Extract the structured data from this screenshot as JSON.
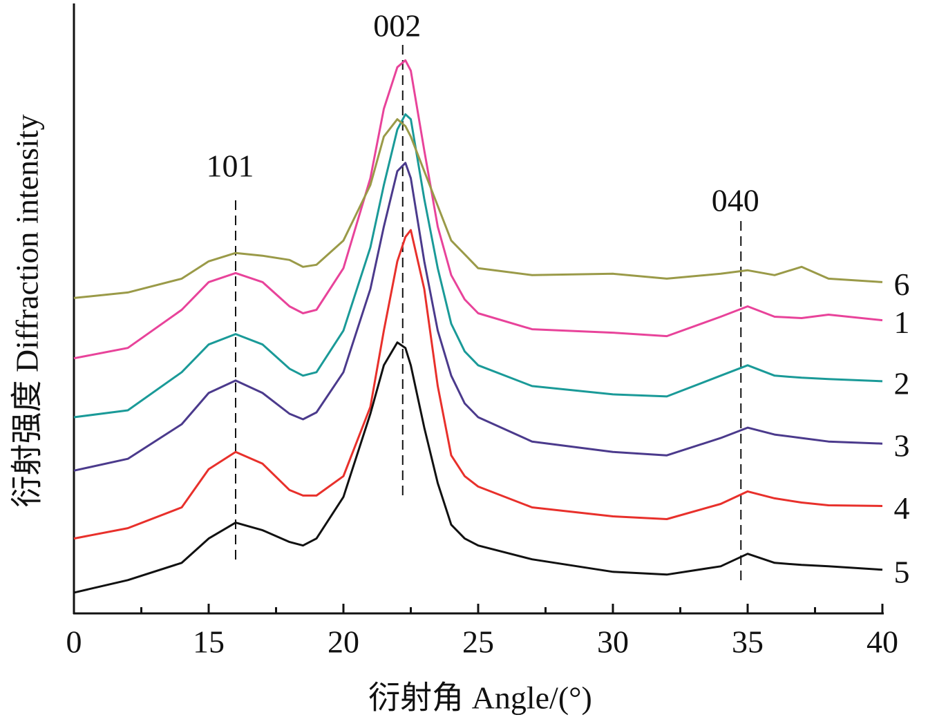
{
  "chart_data": {
    "type": "line",
    "xlabel": "衍射角  Angle/(°)",
    "ylabel": "衍射强度  Diffraction intensity",
    "x": [
      10,
      12,
      14,
      15,
      16,
      17,
      18,
      18.5,
      19,
      20,
      21,
      21.5,
      22,
      22.3,
      22.5,
      23,
      23.5,
      24,
      24.5,
      25,
      27,
      30,
      32,
      34,
      35,
      36,
      37,
      38,
      40
    ],
    "series": [
      {
        "name": "1",
        "color": "#e8439a",
        "values": [
          368,
          383,
          438,
          478,
          491,
          478,
          443,
          433,
          438,
          498,
          628,
          728,
          788,
          798,
          783,
          668,
          558,
          488,
          453,
          433,
          410,
          405,
          400,
          428,
          443,
          428,
          426,
          431,
          423
        ]
      },
      {
        "name": "2",
        "color": "#1a9a98",
        "values": [
          283,
          293,
          348,
          388,
          403,
          388,
          353,
          343,
          348,
          408,
          528,
          618,
          698,
          720,
          713,
          598,
          498,
          418,
          378,
          358,
          328,
          316,
          313,
          343,
          358,
          343,
          340,
          338,
          335
        ]
      },
      {
        "name": "3",
        "color": "#4b3a8c",
        "values": [
          206,
          223,
          273,
          318,
          336,
          318,
          288,
          280,
          290,
          348,
          468,
          558,
          638,
          650,
          628,
          508,
          408,
          343,
          303,
          283,
          248,
          233,
          228,
          253,
          268,
          258,
          253,
          248,
          245
        ]
      },
      {
        "name": "4",
        "color": "#e8302b",
        "values": [
          108,
          123,
          153,
          208,
          233,
          216,
          178,
          170,
          170,
          198,
          298,
          408,
          508,
          543,
          553,
          468,
          328,
          228,
          198,
          183,
          153,
          140,
          136,
          158,
          176,
          166,
          160,
          156,
          155
        ]
      },
      {
        "name": "5",
        "color": "#111111",
        "values": [
          30,
          48,
          73,
          108,
          131,
          120,
          103,
          98,
          108,
          168,
          288,
          358,
          391,
          383,
          358,
          268,
          188,
          128,
          108,
          98,
          78,
          60,
          56,
          68,
          86,
          73,
          70,
          68,
          63
        ]
      },
      {
        "name": "6",
        "color": "#9a9a48",
        "values": [
          455,
          463,
          483,
          508,
          520,
          516,
          510,
          500,
          503,
          538,
          618,
          688,
          713,
          703,
          688,
          638,
          588,
          538,
          518,
          498,
          488,
          490,
          483,
          490,
          495,
          488,
          500,
          483,
          478
        ]
      }
    ],
    "annotations": [
      {
        "text": "101",
        "x": 16
      },
      {
        "text": "002",
        "x": 22.2
      },
      {
        "text": "040",
        "x": 34.75
      }
    ],
    "xlim": [
      10,
      40
    ],
    "xticks": [
      {
        "value": 10,
        "label": "0"
      },
      15,
      20,
      25,
      30,
      35,
      40
    ],
    "xminorticks": [
      12.5,
      17.5,
      22.5,
      27.5,
      32.5,
      37.5
    ],
    "ylim": [
      0,
      880
    ]
  }
}
